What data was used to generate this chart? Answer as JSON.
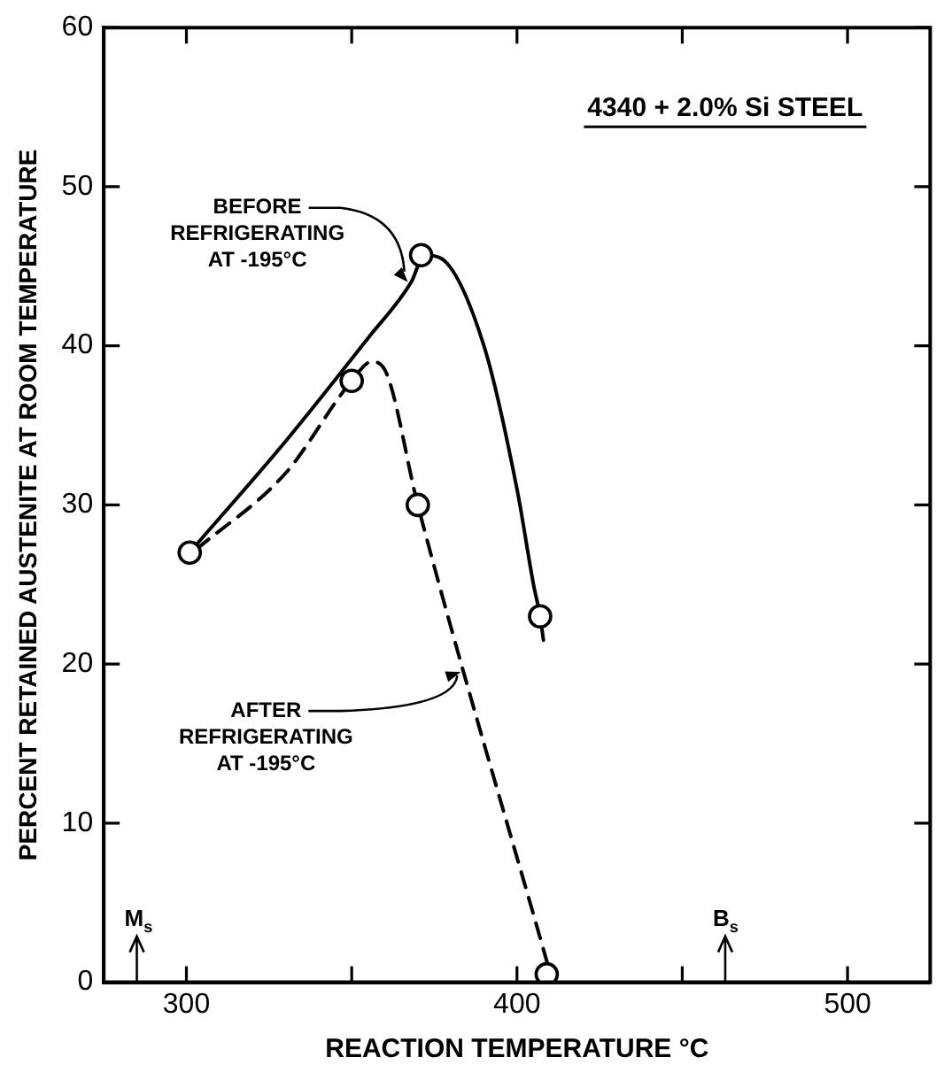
{
  "chart_data": {
    "type": "line",
    "title": "4340 + 2.0% Si STEEL",
    "xlabel": "REACTION TEMPERATURE °C",
    "ylabel": "PERCENT RETAINED AUSTENITE AT ROOM TEMPERATURE",
    "xlim": [
      275,
      525
    ],
    "xticks": [
      300,
      {
        "value": 350,
        "label": null
      },
      400,
      {
        "value": 450,
        "label": null
      },
      500
    ],
    "ylim": [
      0,
      60
    ],
    "yticks": [
      0,
      10,
      20,
      30,
      40,
      50,
      60
    ],
    "grid": false,
    "legend": false,
    "series": [
      {
        "color": "#000000",
        "marker": "none",
        "line_style": "solid",
        "x": [
          303,
          330,
          355,
          368,
          372,
          377,
          390,
          400,
          405,
          407,
          408
        ],
        "values": [
          27.5,
          34,
          40.5,
          44,
          45.7,
          45.5,
          40,
          31,
          25,
          23,
          21.5
        ]
      },
      {
        "color": "#000000",
        "marker": "none",
        "line_style": "dashed",
        "x": [
          303,
          330,
          350,
          356,
          360,
          370,
          410
        ],
        "values": [
          27.2,
          32,
          37.8,
          39,
          38.5,
          30,
          0.6
        ]
      },
      {
        "type": "scatter",
        "color": "#000000",
        "marker": "circle",
        "x": [
          301,
          350,
          371,
          370,
          407,
          409
        ],
        "values": [
          27,
          37.8,
          45.7,
          30,
          23,
          0.5
        ]
      }
    ],
    "annotations": [
      {
        "text": "BEFORE\nREFRIGERATING\nAT -195°C",
        "x": 367,
        "y": 44
      },
      {
        "text": "AFTER\nREFRIGERATING\nAT -195°C",
        "x": 383,
        "y": 19.5
      }
    ],
    "ref_lines": [
      {
        "axis": "x",
        "value": 285,
        "label": "M$_{s}$"
      },
      {
        "axis": "x",
        "value": 463,
        "label": "B$_{s}$"
      }
    ]
  }
}
